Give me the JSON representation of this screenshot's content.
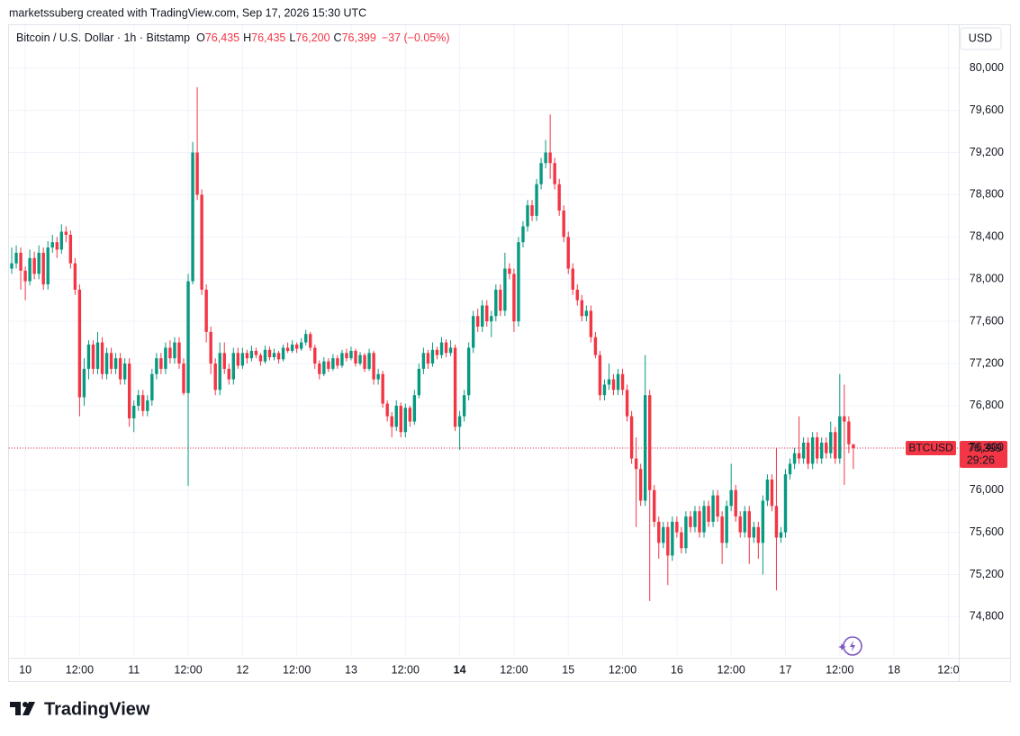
{
  "header": "marketssuberg created with TradingView.com, Sep 17, 2026 15:30 UTC",
  "logo": "TradingView",
  "chart_data": {
    "type": "candlestick",
    "title": "Bitcoin / U.S. Dollar · 1h · Bitstamp",
    "legend_items": [
      {
        "key": "O",
        "value": "76,435"
      },
      {
        "key": "H",
        "value": "76,435"
      },
      {
        "key": "L",
        "value": "76,200"
      },
      {
        "key": "C",
        "value": "76,399"
      }
    ],
    "change": "−37 (−0.05%)",
    "currency": "USD",
    "up_color": "#089981",
    "down_color": "#f23645",
    "grid": true,
    "ylim": [
      74420,
      80390
    ],
    "yticks": [
      {
        "value": 74800,
        "label": "74,800"
      },
      {
        "value": 75200,
        "label": "75,200"
      },
      {
        "value": 75600,
        "label": "75,600"
      },
      {
        "value": 76000,
        "label": "76,000"
      },
      {
        "value": 76400,
        "label": "76,400"
      },
      {
        "value": 76800,
        "label": "76,800"
      },
      {
        "value": 77200,
        "label": "77,200"
      },
      {
        "value": 77600,
        "label": "77,600"
      },
      {
        "value": 78000,
        "label": "78,000"
      },
      {
        "value": 78400,
        "label": "78,400"
      },
      {
        "value": 78800,
        "label": "78,800"
      },
      {
        "value": 79200,
        "label": "79,200"
      },
      {
        "value": 79600,
        "label": "79,600"
      },
      {
        "value": 80000,
        "label": "80,000"
      }
    ],
    "xlim": [
      -0.6,
      209.3
    ],
    "xticks": [
      {
        "value": 3,
        "label": "10"
      },
      {
        "value": 15,
        "label": "12:00"
      },
      {
        "value": 27,
        "label": "11"
      },
      {
        "value": 39,
        "label": "12:00"
      },
      {
        "value": 51,
        "label": "12"
      },
      {
        "value": 63,
        "label": "12:00"
      },
      {
        "value": 75,
        "label": "13"
      },
      {
        "value": 87,
        "label": "12:00"
      },
      {
        "value": 99,
        "label": "14",
        "bold": true
      },
      {
        "value": 111,
        "label": "12:00"
      },
      {
        "value": 123,
        "label": "15"
      },
      {
        "value": 135,
        "label": "12:00"
      },
      {
        "value": 147,
        "label": "16"
      },
      {
        "value": 159,
        "label": "12:00"
      },
      {
        "value": 171,
        "label": "17"
      },
      {
        "value": 183,
        "label": "12:00"
      },
      {
        "value": 195,
        "label": "18"
      },
      {
        "value": 207,
        "label": "12:0"
      }
    ],
    "last_price": {
      "symbol": "BTCUSD",
      "value": 76399,
      "label": "76,399",
      "countdown": "29:26"
    },
    "ohlc": [
      [
        78100,
        78300,
        78050,
        78150
      ],
      [
        78150,
        78320,
        78100,
        78250
      ],
      [
        78250,
        78300,
        77900,
        78080
      ],
      [
        78080,
        78120,
        77800,
        77980
      ],
      [
        77980,
        78280,
        77940,
        78200
      ],
      [
        78200,
        78260,
        78000,
        78050
      ],
      [
        78050,
        78320,
        78000,
        78250
      ],
      [
        78250,
        78300,
        77900,
        77950
      ],
      [
        77950,
        78360,
        77900,
        78300
      ],
      [
        78300,
        78420,
        78250,
        78350
      ],
      [
        78350,
        78400,
        78200,
        78280
      ],
      [
        78280,
        78520,
        78240,
        78450
      ],
      [
        78450,
        78500,
        78350,
        78420
      ],
      [
        78420,
        78460,
        78100,
        78150
      ],
      [
        78150,
        78200,
        77850,
        77900
      ],
      [
        77900,
        77950,
        76700,
        76880
      ],
      [
        76880,
        77250,
        76800,
        77150
      ],
      [
        77150,
        77420,
        77050,
        77380
      ],
      [
        77380,
        77420,
        77100,
        77150
      ],
      [
        77150,
        77500,
        77100,
        77400
      ],
      [
        77400,
        77450,
        77050,
        77100
      ],
      [
        77100,
        77350,
        77050,
        77300
      ],
      [
        77300,
        77350,
        77100,
        77150
      ],
      [
        77150,
        77300,
        77100,
        77250
      ],
      [
        77250,
        77300,
        77000,
        77050
      ],
      [
        77050,
        77250,
        77000,
        77200
      ],
      [
        77200,
        77250,
        76600,
        76680
      ],
      [
        76680,
        76850,
        76550,
        76800
      ],
      [
        76800,
        76950,
        76750,
        76900
      ],
      [
        76900,
        76950,
        76700,
        76750
      ],
      [
        76750,
        76900,
        76700,
        76850
      ],
      [
        76850,
        77150,
        76800,
        77100
      ],
      [
        77100,
        77300,
        77050,
        77250
      ],
      [
        77250,
        77300,
        77100,
        77150
      ],
      [
        77150,
        77400,
        77100,
        77350
      ],
      [
        77350,
        77420,
        77200,
        77250
      ],
      [
        77250,
        77450,
        77200,
        77400
      ],
      [
        77400,
        77450,
        77150,
        77200
      ],
      [
        77200,
        77250,
        76900,
        76920
      ],
      [
        76920,
        78050,
        76040,
        77980
      ],
      [
        77980,
        79300,
        77950,
        79200
      ],
      [
        79200,
        79820,
        78750,
        78800
      ],
      [
        78800,
        78850,
        77850,
        77900
      ],
      [
        77900,
        77950,
        77400,
        77500
      ],
      [
        77500,
        77550,
        77100,
        77200
      ],
      [
        77200,
        77250,
        76900,
        76950
      ],
      [
        76950,
        77400,
        76900,
        77300
      ],
      [
        77300,
        77400,
        77100,
        77150
      ],
      [
        77150,
        77200,
        77000,
        77050
      ],
      [
        77050,
        77350,
        77000,
        77300
      ],
      [
        77300,
        77350,
        77150,
        77180
      ],
      [
        77180,
        77350,
        77150,
        77300
      ],
      [
        77300,
        77330,
        77200,
        77250
      ],
      [
        77250,
        77370,
        77220,
        77320
      ],
      [
        77320,
        77350,
        77250,
        77280
      ],
      [
        77280,
        77300,
        77180,
        77220
      ],
      [
        77220,
        77370,
        77200,
        77330
      ],
      [
        77330,
        77360,
        77230,
        77260
      ],
      [
        77260,
        77340,
        77230,
        77300
      ],
      [
        77300,
        77320,
        77200,
        77240
      ],
      [
        77240,
        77380,
        77220,
        77350
      ],
      [
        77350,
        77400,
        77300,
        77320
      ],
      [
        77320,
        77420,
        77300,
        77380
      ],
      [
        77380,
        77400,
        77300,
        77340
      ],
      [
        77340,
        77440,
        77320,
        77400
      ],
      [
        77400,
        77520,
        77370,
        77480
      ],
      [
        77480,
        77500,
        77320,
        77350
      ],
      [
        77350,
        77380,
        77150,
        77200
      ],
      [
        77200,
        77230,
        77050,
        77100
      ],
      [
        77100,
        77260,
        77080,
        77220
      ],
      [
        77220,
        77250,
        77120,
        77150
      ],
      [
        77150,
        77290,
        77130,
        77250
      ],
      [
        77250,
        77280,
        77150,
        77180
      ],
      [
        77180,
        77330,
        77160,
        77300
      ],
      [
        77300,
        77340,
        77220,
        77250
      ],
      [
        77250,
        77360,
        77230,
        77320
      ],
      [
        77320,
        77340,
        77170,
        77200
      ],
      [
        77200,
        77310,
        77180,
        77280
      ],
      [
        77280,
        77300,
        77120,
        77150
      ],
      [
        77150,
        77340,
        77130,
        77300
      ],
      [
        77300,
        77320,
        77000,
        77050
      ],
      [
        77050,
        77150,
        77000,
        77100
      ],
      [
        77100,
        77130,
        76780,
        76820
      ],
      [
        76820,
        76850,
        76650,
        76700
      ],
      [
        76700,
        76740,
        76500,
        76600
      ],
      [
        76600,
        76850,
        76560,
        76800
      ],
      [
        76800,
        76830,
        76500,
        76550
      ],
      [
        76550,
        76820,
        76500,
        76780
      ],
      [
        76780,
        76800,
        76600,
        76650
      ],
      [
        76650,
        76950,
        76620,
        76900
      ],
      [
        76900,
        77200,
        76870,
        77150
      ],
      [
        77150,
        77350,
        77100,
        77300
      ],
      [
        77300,
        77330,
        77150,
        77200
      ],
      [
        77200,
        77400,
        77170,
        77330
      ],
      [
        77330,
        77360,
        77240,
        77280
      ],
      [
        77280,
        77450,
        77250,
        77400
      ],
      [
        77400,
        77430,
        77260,
        77300
      ],
      [
        77300,
        77420,
        77270,
        77350
      ],
      [
        77350,
        77380,
        76560,
        76600
      ],
      [
        76600,
        76750,
        76380,
        76700
      ],
      [
        76700,
        76950,
        76650,
        76900
      ],
      [
        76900,
        77400,
        76850,
        77350
      ],
      [
        77350,
        77700,
        77300,
        77650
      ],
      [
        77650,
        77720,
        77500,
        77550
      ],
      [
        77550,
        77800,
        77500,
        77750
      ],
      [
        77750,
        77800,
        77550,
        77600
      ],
      [
        77600,
        77700,
        77450,
        77650
      ],
      [
        77650,
        77950,
        77600,
        77900
      ],
      [
        77900,
        77950,
        77650,
        77700
      ],
      [
        77700,
        78250,
        77650,
        78100
      ],
      [
        78100,
        78150,
        78000,
        78050
      ],
      [
        78050,
        78100,
        77500,
        77600
      ],
      [
        77600,
        78400,
        77550,
        78350
      ],
      [
        78350,
        78550,
        78300,
        78500
      ],
      [
        78500,
        78750,
        78450,
        78700
      ],
      [
        78700,
        78750,
        78550,
        78600
      ],
      [
        78600,
        78950,
        78550,
        78900
      ],
      [
        78900,
        79150,
        78850,
        79100
      ],
      [
        79100,
        79320,
        79050,
        79200
      ],
      [
        79200,
        79560,
        78950,
        79100
      ],
      [
        79100,
        79150,
        78850,
        78900
      ],
      [
        78900,
        78950,
        78600,
        78650
      ],
      [
        78650,
        78700,
        78350,
        78400
      ],
      [
        78400,
        78450,
        78050,
        78100
      ],
      [
        78100,
        78150,
        77850,
        77900
      ],
      [
        77900,
        77950,
        77750,
        77800
      ],
      [
        77800,
        77850,
        77600,
        77650
      ],
      [
        77650,
        77750,
        77600,
        77700
      ],
      [
        77700,
        77750,
        77400,
        77450
      ],
      [
        77450,
        77500,
        77250,
        77280
      ],
      [
        77280,
        77320,
        76850,
        76900
      ],
      [
        76900,
        77050,
        76850,
        77000
      ],
      [
        77000,
        77200,
        76950,
        77050
      ],
      [
        77050,
        77100,
        76900,
        76950
      ],
      [
        76950,
        77150,
        76900,
        77100
      ],
      [
        77100,
        77150,
        76900,
        76950
      ],
      [
        76950,
        77000,
        76650,
        76700
      ],
      [
        76700,
        76750,
        76250,
        76300
      ],
      [
        76300,
        76500,
        75650,
        76200
      ],
      [
        76200,
        76250,
        75850,
        75900
      ],
      [
        75900,
        77280,
        75850,
        76900
      ],
      [
        76900,
        76950,
        74950,
        76000
      ],
      [
        76000,
        76050,
        75650,
        75700
      ],
      [
        75700,
        75750,
        75350,
        75500
      ],
      [
        75500,
        75700,
        75450,
        75650
      ],
      [
        75650,
        75700,
        75100,
        75380
      ],
      [
        75380,
        75750,
        75330,
        75700
      ],
      [
        75700,
        75750,
        75550,
        75600
      ],
      [
        75600,
        75650,
        75400,
        75450
      ],
      [
        75450,
        75800,
        75400,
        75750
      ],
      [
        75750,
        75800,
        75600,
        75650
      ],
      [
        75650,
        75850,
        75600,
        75800
      ],
      [
        75800,
        75850,
        75550,
        75600
      ],
      [
        75600,
        75900,
        75550,
        75850
      ],
      [
        75850,
        75900,
        75650,
        75700
      ],
      [
        75700,
        76000,
        75650,
        75950
      ],
      [
        75950,
        76000,
        75700,
        75750
      ],
      [
        75750,
        75800,
        75300,
        75500
      ],
      [
        75500,
        75900,
        75450,
        75850
      ],
      [
        75850,
        76250,
        75800,
        76000
      ],
      [
        76000,
        76050,
        75700,
        75750
      ],
      [
        75750,
        75800,
        75550,
        75600
      ],
      [
        75600,
        75850,
        75550,
        75800
      ],
      [
        75800,
        75850,
        75300,
        75550
      ],
      [
        75550,
        75700,
        75500,
        75650
      ],
      [
        75650,
        75700,
        75350,
        75500
      ],
      [
        75500,
        75950,
        75200,
        75900
      ],
      [
        75900,
        76150,
        75850,
        76100
      ],
      [
        76100,
        76150,
        75800,
        75850
      ],
      [
        75850,
        76400,
        75050,
        75550
      ],
      [
        75550,
        75650,
        75500,
        75600
      ],
      [
        75600,
        76200,
        75550,
        76150
      ],
      [
        76150,
        76300,
        76100,
        76250
      ],
      [
        76250,
        76400,
        76200,
        76350
      ],
      [
        76350,
        76700,
        76250,
        76300
      ],
      [
        76300,
        76500,
        76250,
        76450
      ],
      [
        76450,
        76500,
        76200,
        76250
      ],
      [
        76250,
        76550,
        76200,
        76500
      ],
      [
        76500,
        76550,
        76250,
        76300
      ],
      [
        76300,
        76500,
        76250,
        76450
      ],
      [
        76450,
        76500,
        76300,
        76350
      ],
      [
        76350,
        76650,
        76300,
        76550
      ],
      [
        76550,
        76600,
        76250,
        76300
      ],
      [
        76300,
        77100,
        76250,
        76700
      ],
      [
        76700,
        77000,
        76050,
        76650
      ],
      [
        76650,
        76700,
        76350,
        76435
      ],
      [
        76435,
        76435,
        76200,
        76399
      ]
    ]
  }
}
